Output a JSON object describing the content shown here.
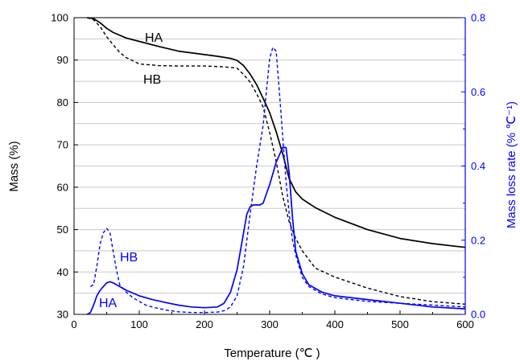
{
  "chart_data": {
    "type": "line",
    "xlabel": "Temperature (℃ )",
    "ylabel_left": "Mass (%)",
    "ylabel_right": "Mass loss rate  (% ℃⁻¹)",
    "xlim": [
      0,
      600
    ],
    "ylim_left": [
      30,
      100
    ],
    "ylim_right": [
      0,
      0.8
    ],
    "x_ticks": [
      "0",
      "100",
      "200",
      "300",
      "400",
      "500",
      "600"
    ],
    "y_left_ticks": [
      "30",
      "40",
      "50",
      "60",
      "70",
      "80",
      "90",
      "100"
    ],
    "y_right_ticks": [
      "0.0",
      "0.2",
      "0.4",
      "0.6",
      "0.8"
    ],
    "grid": "horizontal gray lines at minor left-axis intervals",
    "colors": {
      "mass": "#000000",
      "rate": "#0000ff",
      "grid": "#c8c8c8"
    },
    "annotations": [
      {
        "text": "HA",
        "series": "mass",
        "color": "#000000"
      },
      {
        "text": "HB",
        "series": "mass",
        "color": "#000000"
      },
      {
        "text": "HB",
        "series": "rate",
        "color": "#0000ff"
      },
      {
        "text": "HA",
        "series": "rate",
        "color": "#0000ff"
      }
    ],
    "series": [
      {
        "name": "HA",
        "axis": "left",
        "style": "solid",
        "color": "#000000",
        "x": [
          20,
          30,
          40,
          50,
          60,
          80,
          100,
          130,
          160,
          200,
          220,
          240,
          250,
          260,
          270,
          280,
          290,
          300,
          310,
          320,
          330,
          340,
          350,
          370,
          400,
          450,
          500,
          550,
          600
        ],
        "y": [
          100,
          99.8,
          98.8,
          97.5,
          96.5,
          95.2,
          94.4,
          93.2,
          92.1,
          91.3,
          90.9,
          90.4,
          89.9,
          88.7,
          86.7,
          84.2,
          81,
          77.6,
          73.1,
          67.9,
          62,
          58.9,
          57.2,
          55.2,
          52.9,
          50,
          47.9,
          46.7,
          45.8
        ]
      },
      {
        "name": "HB",
        "axis": "left",
        "style": "dashed",
        "color": "#000000",
        "x": [
          20,
          30,
          40,
          50,
          60,
          70,
          80,
          100,
          130,
          160,
          200,
          230,
          250,
          260,
          270,
          280,
          290,
          300,
          310,
          320,
          330,
          340,
          350,
          370,
          400,
          450,
          500,
          550,
          600
        ],
        "y": [
          100,
          99.5,
          97.9,
          95.5,
          93.6,
          91.8,
          90.6,
          89.1,
          88.7,
          88.6,
          88.6,
          88.4,
          88.1,
          86.6,
          84.8,
          82.1,
          78.9,
          72.9,
          66.1,
          57.9,
          51.8,
          47.9,
          45,
          40.9,
          38.8,
          36.2,
          34.2,
          33,
          32.4
        ]
      },
      {
        "name": "HB",
        "axis": "right",
        "style": "dashed",
        "color": "#0000ff",
        "x": [
          25,
          30,
          35,
          40,
          45,
          50,
          55,
          60,
          65,
          70,
          80,
          90,
          100,
          110,
          120,
          140,
          160,
          180,
          200,
          220,
          230,
          240,
          250,
          260,
          270,
          280,
          290,
          295,
          300,
          305,
          310,
          315,
          320,
          325,
          330,
          335,
          340,
          350,
          360,
          380,
          400,
          450,
          500,
          550,
          600
        ],
        "y": [
          0.075,
          0.08,
          0.13,
          0.19,
          0.22,
          0.232,
          0.22,
          0.17,
          0.12,
          0.08,
          0.06,
          0.045,
          0.035,
          0.025,
          0.02,
          0.012,
          0.007,
          0.005,
          0.005,
          0.006,
          0.01,
          0.02,
          0.05,
          0.13,
          0.27,
          0.4,
          0.51,
          0.6,
          0.69,
          0.72,
          0.71,
          0.6,
          0.48,
          0.36,
          0.27,
          0.2,
          0.16,
          0.1,
          0.075,
          0.055,
          0.045,
          0.035,
          0.03,
          0.025,
          0.02
        ]
      },
      {
        "name": "HA",
        "axis": "right",
        "style": "solid",
        "color": "#0000ff",
        "x": [
          20,
          25,
          30,
          35,
          40,
          45,
          50,
          55,
          60,
          70,
          80,
          100,
          120,
          140,
          160,
          180,
          200,
          220,
          230,
          240,
          250,
          260,
          265,
          270,
          275,
          280,
          285,
          290,
          300,
          310,
          315,
          320,
          325,
          330,
          335,
          340,
          350,
          360,
          380,
          400,
          450,
          500,
          550,
          600
        ],
        "y": [
          0,
          0.005,
          0.025,
          0.05,
          0.065,
          0.075,
          0.085,
          0.088,
          0.085,
          0.075,
          0.065,
          0.05,
          0.04,
          0.032,
          0.025,
          0.02,
          0.018,
          0.02,
          0.03,
          0.06,
          0.12,
          0.22,
          0.27,
          0.29,
          0.295,
          0.295,
          0.295,
          0.3,
          0.35,
          0.41,
          0.43,
          0.45,
          0.45,
          0.38,
          0.26,
          0.17,
          0.11,
          0.08,
          0.06,
          0.05,
          0.04,
          0.03,
          0.02,
          0.015
        ]
      }
    ]
  }
}
